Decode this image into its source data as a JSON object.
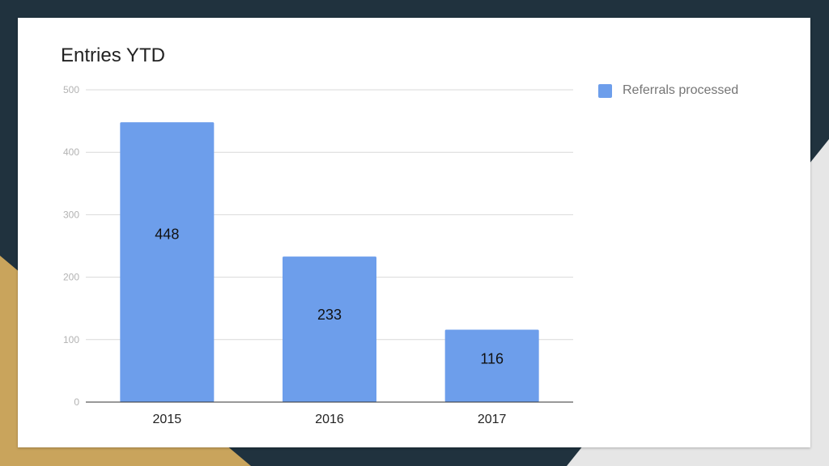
{
  "slide": {
    "background_color": "#20323e",
    "accent_color": "#c9a45c",
    "light_accent_color": "#e6e6e6",
    "card_color": "#ffffff"
  },
  "chart_data": {
    "type": "bar",
    "title": "Entries YTD",
    "xlabel": "",
    "ylabel": "",
    "categories": [
      "2015",
      "2016",
      "2017"
    ],
    "series": [
      {
        "name": "Referrals processed",
        "values": [
          448,
          233,
          116
        ],
        "color": "#6d9eeb"
      }
    ],
    "data_labels": [
      "448",
      "233",
      "116"
    ],
    "ylim": [
      0,
      500
    ],
    "yticks": [
      "0",
      "100",
      "200",
      "300",
      "400",
      "500"
    ],
    "grid": true,
    "legend_position": "right"
  }
}
